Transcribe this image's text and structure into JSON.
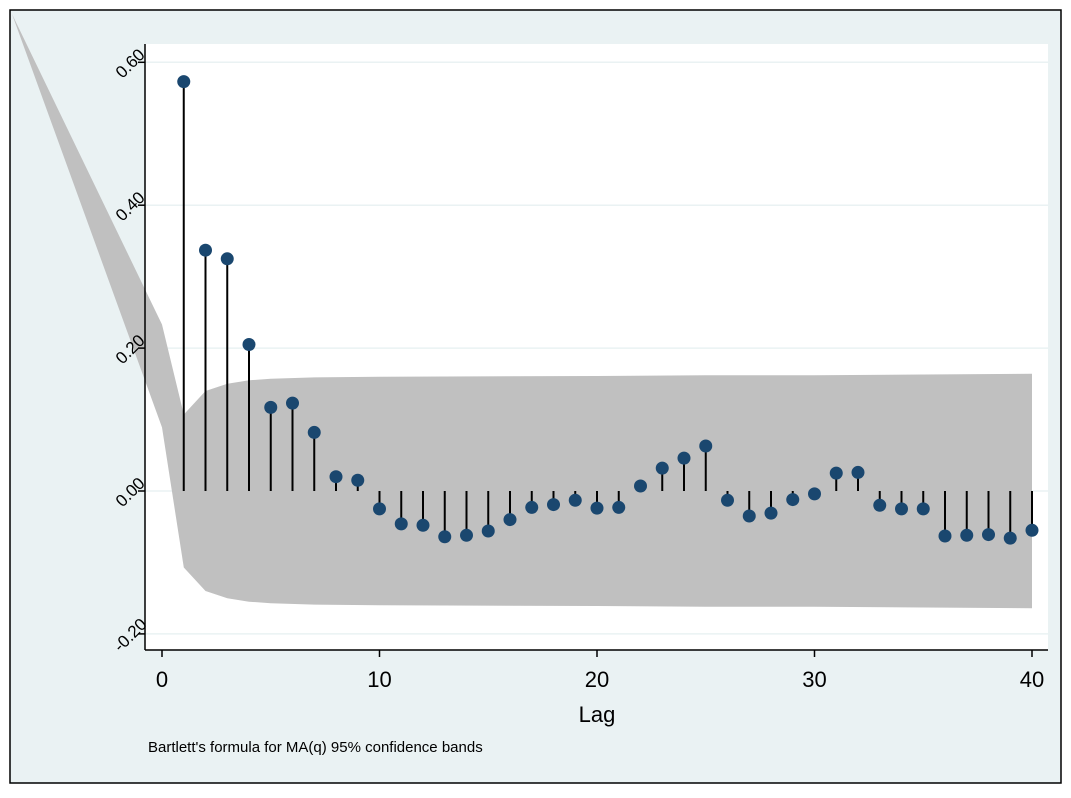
{
  "chart_data": {
    "type": "scatter",
    "style": "stem",
    "xlabel": "Lag",
    "ylabel": "",
    "xlim": [
      -1,
      41
    ],
    "ylim": [
      -0.22,
      0.63
    ],
    "xticks": [
      0,
      10,
      20,
      30,
      40
    ],
    "xtick_labels": [
      "0",
      "10",
      "20",
      "30",
      "40"
    ],
    "yticks": [
      -0.2,
      0.0,
      0.2,
      0.4,
      0.6
    ],
    "ytick_labels": [
      "-0.20",
      "0.00",
      "0.20",
      "0.40",
      "0.60"
    ],
    "grid": "horizontal",
    "note": "Bartlett's formula for MA(q) 95% confidence bands",
    "colors": {
      "marker": "#1a476f",
      "stem": "#000000",
      "band": "#c0c0c0",
      "background": "#eaf2f3",
      "plot_bg": "#ffffff",
      "grid": "#eaf2f3"
    },
    "series": [
      {
        "x": [
          1,
          2,
          3,
          4,
          5,
          6,
          7,
          8,
          9,
          10,
          11,
          12,
          13,
          14,
          15,
          16,
          17,
          18,
          19,
          20,
          21,
          22,
          23,
          24,
          25,
          26,
          27,
          28,
          29,
          30,
          31,
          32,
          33,
          34,
          35,
          36,
          37,
          38,
          39,
          40
        ],
        "values": [
          0.573,
          0.337,
          0.325,
          0.205,
          0.117,
          0.123,
          0.082,
          0.02,
          0.015,
          -0.025,
          -0.046,
          -0.048,
          -0.064,
          -0.062,
          -0.056,
          -0.04,
          -0.023,
          -0.019,
          -0.013,
          -0.024,
          -0.023,
          0.007,
          0.032,
          0.046,
          0.063,
          -0.013,
          -0.035,
          -0.031,
          -0.012,
          -0.004,
          0.025,
          0.026,
          -0.02,
          -0.025,
          -0.025,
          -0.063,
          -0.062,
          -0.061,
          -0.066,
          -0.055
        ]
      }
    ],
    "confidence_band": {
      "x": [
        0,
        1,
        2,
        3,
        4,
        5,
        7,
        10,
        20,
        25,
        30,
        35,
        40
      ],
      "upper": [
        0.233,
        0.107,
        0.14,
        0.15,
        0.155,
        0.157,
        0.159,
        0.16,
        0.161,
        0.162,
        0.162,
        0.163,
        0.164
      ],
      "lower": [
        0.089,
        -0.107,
        -0.14,
        -0.15,
        -0.155,
        -0.157,
        -0.159,
        -0.16,
        -0.161,
        -0.162,
        -0.162,
        -0.163,
        -0.164
      ]
    }
  }
}
